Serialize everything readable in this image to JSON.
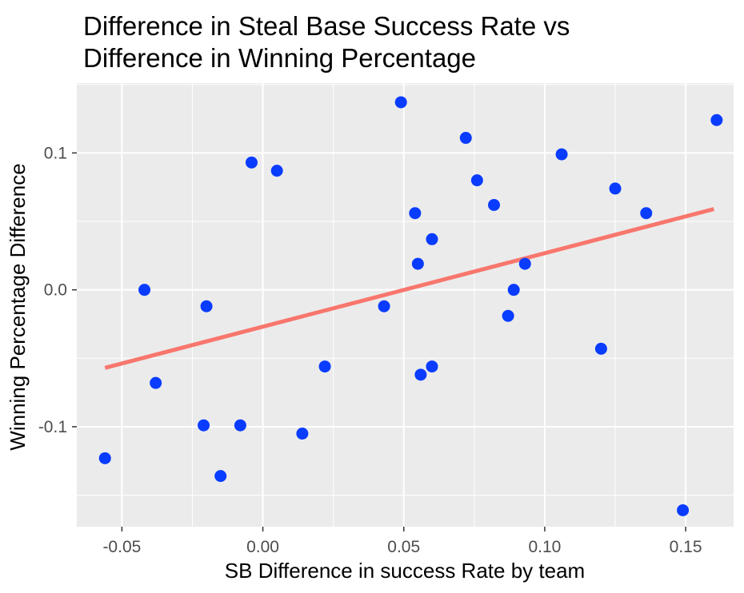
{
  "chart_data": {
    "type": "scatter",
    "title_lines": [
      "Difference in Steal Base Success Rate vs",
      "Difference in Winning Percentage"
    ],
    "xlabel": "SB Difference in success Rate by team",
    "ylabel": "Winning Percentage Difference",
    "xlim": [
      -0.066,
      0.167
    ],
    "ylim": [
      -0.173,
      0.151
    ],
    "x_ticks": [
      -0.05,
      0.0,
      0.05,
      0.1,
      0.15
    ],
    "x_tick_labels": [
      "-0.05",
      "0.00",
      "0.05",
      "0.10",
      "0.15"
    ],
    "y_ticks": [
      -0.1,
      0.0,
      0.1
    ],
    "y_tick_labels": [
      "-0.1",
      "0.0",
      "0.1"
    ],
    "grid": true,
    "point_color": "#0a3cff",
    "line_color": "#f8766d",
    "panel_color": "#ebebeb",
    "points": [
      {
        "x": -0.056,
        "y": -0.123
      },
      {
        "x": -0.042,
        "y": 0.0
      },
      {
        "x": -0.038,
        "y": -0.068
      },
      {
        "x": -0.021,
        "y": -0.099
      },
      {
        "x": -0.02,
        "y": -0.012
      },
      {
        "x": -0.015,
        "y": -0.136
      },
      {
        "x": -0.008,
        "y": -0.099
      },
      {
        "x": -0.004,
        "y": 0.093
      },
      {
        "x": 0.005,
        "y": 0.087
      },
      {
        "x": 0.014,
        "y": -0.105
      },
      {
        "x": 0.022,
        "y": -0.056
      },
      {
        "x": 0.043,
        "y": -0.012
      },
      {
        "x": 0.049,
        "y": 0.137
      },
      {
        "x": 0.054,
        "y": 0.056
      },
      {
        "x": 0.055,
        "y": 0.019
      },
      {
        "x": 0.056,
        "y": -0.062
      },
      {
        "x": 0.06,
        "y": 0.037
      },
      {
        "x": 0.06,
        "y": -0.056
      },
      {
        "x": 0.072,
        "y": 0.111
      },
      {
        "x": 0.076,
        "y": 0.08
      },
      {
        "x": 0.082,
        "y": 0.062
      },
      {
        "x": 0.087,
        "y": -0.019
      },
      {
        "x": 0.089,
        "y": 0.0
      },
      {
        "x": 0.093,
        "y": 0.019
      },
      {
        "x": 0.106,
        "y": 0.099
      },
      {
        "x": 0.12,
        "y": -0.043
      },
      {
        "x": 0.125,
        "y": 0.074
      },
      {
        "x": 0.136,
        "y": 0.056
      },
      {
        "x": 0.149,
        "y": -0.161
      },
      {
        "x": 0.161,
        "y": 0.124
      }
    ],
    "trend_line": {
      "x": [
        -0.056,
        0.16
      ],
      "y": [
        -0.057,
        0.059
      ]
    }
  }
}
